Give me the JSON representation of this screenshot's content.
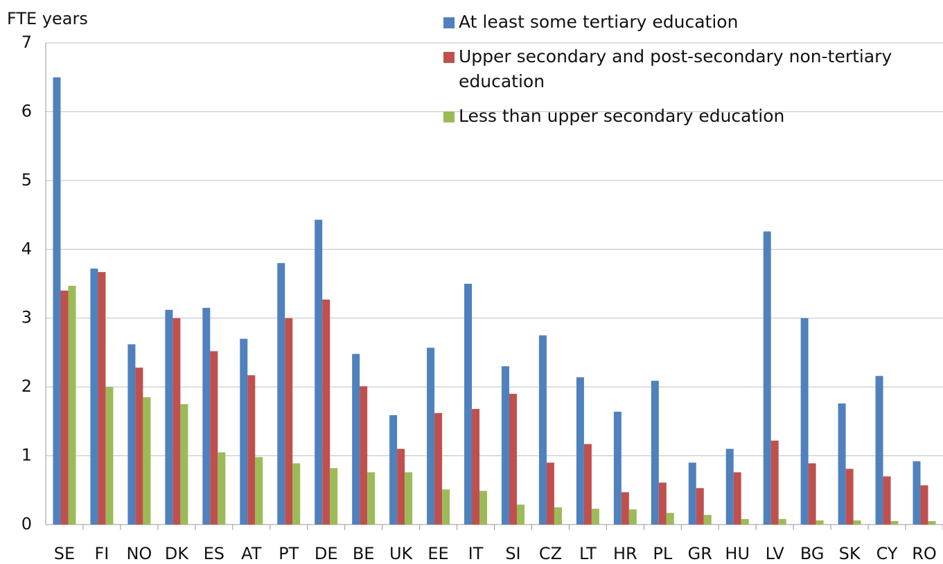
{
  "chart_data": {
    "type": "bar",
    "y_label": "FTE years",
    "categories": [
      "SE",
      "FI",
      "NO",
      "DK",
      "ES",
      "AT",
      "PT",
      "DE",
      "BE",
      "UK",
      "EE",
      "IT",
      "SI",
      "CZ",
      "LT",
      "HR",
      "PL",
      "GR",
      "HU",
      "LV",
      "BG",
      "SK",
      "CY",
      "RO"
    ],
    "series": [
      {
        "name": "At least some tertiary education",
        "color": "#4f81bd",
        "values": [
          6.5,
          3.72,
          2.62,
          3.12,
          3.15,
          2.7,
          3.8,
          4.43,
          2.48,
          1.59,
          2.57,
          3.5,
          2.3,
          2.75,
          2.14,
          1.64,
          2.09,
          0.9,
          1.1,
          4.26,
          3.0,
          1.76,
          2.16,
          0.92
        ]
      },
      {
        "name": "Upper secondary and post-secondary non-tertiary education",
        "color": "#c0504d",
        "values": [
          3.4,
          3.67,
          2.28,
          3.0,
          2.52,
          2.17,
          3.0,
          3.27,
          2.01,
          1.1,
          1.62,
          1.68,
          1.9,
          0.9,
          1.17,
          0.47,
          0.61,
          0.53,
          0.76,
          1.22,
          0.89,
          0.81,
          0.7,
          0.57
        ]
      },
      {
        "name": "Less than upper secondary education",
        "color": "#9bbb59",
        "values": [
          3.47,
          2.0,
          1.85,
          1.75,
          1.05,
          0.98,
          0.89,
          0.82,
          0.76,
          0.76,
          0.51,
          0.49,
          0.29,
          0.25,
          0.23,
          0.22,
          0.17,
          0.14,
          0.08,
          0.08,
          0.06,
          0.06,
          0.05,
          0.05
        ]
      }
    ],
    "ylim": [
      0,
      7
    ],
    "yticks": [
      0,
      1,
      2,
      3,
      4,
      5,
      6,
      7
    ],
    "grid": true,
    "legend": "upper right"
  }
}
